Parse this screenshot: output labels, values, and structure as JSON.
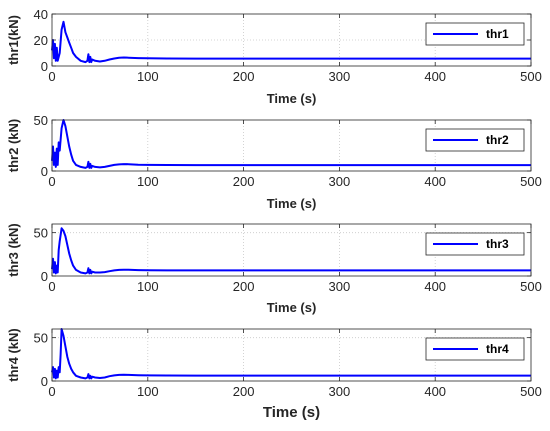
{
  "chart_data": [
    {
      "type": "line",
      "xlabel": "Time (s)",
      "ylabel": "thr1(kN)",
      "xlim": [
        0,
        500
      ],
      "ylim": [
        0,
        40
      ],
      "xticks": [
        0,
        100,
        200,
        300,
        400,
        500
      ],
      "yticks": [
        0,
        20,
        40
      ],
      "grid": true,
      "legend": "top-right",
      "color": "#0000ff",
      "series": [
        {
          "name": "thr1",
          "x": [
            0,
            1,
            2,
            3,
            4,
            5,
            6,
            8,
            10,
            12,
            14,
            16,
            18,
            20,
            22,
            25,
            30,
            35,
            37,
            38,
            39,
            40,
            41,
            42,
            45,
            50,
            55,
            60,
            65,
            70,
            75,
            80,
            90,
            100,
            120,
            150,
            200,
            300,
            400,
            500
          ],
          "y": [
            12,
            20,
            6,
            17,
            4,
            14,
            4,
            10,
            28,
            34,
            26,
            22,
            18,
            14,
            10,
            7,
            4,
            3,
            4,
            9,
            3,
            7,
            3,
            5,
            4,
            3.5,
            4,
            5,
            5.8,
            6.3,
            6.5,
            6.4,
            6.1,
            5.9,
            5.8,
            5.7,
            5.7,
            5.7,
            5.7,
            5.7
          ]
        }
      ]
    },
    {
      "type": "line",
      "xlabel": "Time (s)",
      "ylabel": "thr2 (kN)",
      "xlim": [
        0,
        500
      ],
      "ylim": [
        0,
        50
      ],
      "xticks": [
        0,
        100,
        200,
        300,
        400,
        500
      ],
      "yticks": [
        0,
        50
      ],
      "grid": true,
      "legend": "top-right",
      "color": "#0000ff",
      "series": [
        {
          "name": "thr2",
          "x": [
            0,
            1,
            2,
            3,
            4,
            5,
            6,
            7,
            8,
            10,
            12,
            14,
            16,
            18,
            20,
            22,
            25,
            30,
            35,
            37,
            38,
            39,
            40,
            41,
            42,
            45,
            50,
            55,
            60,
            65,
            70,
            75,
            80,
            90,
            100,
            120,
            150,
            200,
            300,
            400,
            500
          ],
          "y": [
            10,
            24,
            6,
            18,
            4,
            22,
            6,
            28,
            20,
            42,
            50,
            44,
            34,
            24,
            16,
            10,
            6,
            4,
            3,
            4,
            9,
            3,
            7,
            3,
            5,
            4,
            3.5,
            4,
            5,
            6,
            6.5,
            6.8,
            6.7,
            6.2,
            6,
            5.9,
            5.8,
            5.8,
            5.8,
            5.8,
            5.8
          ]
        }
      ]
    },
    {
      "type": "line",
      "xlabel": "Time (s)",
      "ylabel": "thr3 (kN)",
      "xlim": [
        0,
        500
      ],
      "ylim": [
        0,
        60
      ],
      "xticks": [
        0,
        100,
        200,
        300,
        400,
        500
      ],
      "yticks": [
        0,
        50
      ],
      "grid": true,
      "legend": "top-right",
      "color": "#0000ff",
      "series": [
        {
          "name": "thr3",
          "x": [
            0,
            1,
            2,
            3,
            4,
            5,
            6,
            7,
            8,
            10,
            12,
            14,
            16,
            18,
            20,
            22,
            25,
            30,
            35,
            37,
            38,
            39,
            40,
            41,
            42,
            45,
            50,
            55,
            60,
            65,
            70,
            75,
            80,
            90,
            100,
            120,
            150,
            200,
            300,
            400,
            500
          ],
          "y": [
            8,
            20,
            4,
            16,
            3,
            12,
            4,
            30,
            40,
            55,
            52,
            46,
            36,
            26,
            18,
            12,
            7,
            4,
            3,
            4,
            9,
            3,
            7,
            3,
            5,
            4,
            4,
            4.5,
            5.5,
            6.5,
            7,
            7.2,
            7.1,
            6.8,
            6.6,
            6.5,
            6.5,
            6.5,
            6.5,
            6.5,
            6.5
          ]
        }
      ]
    },
    {
      "type": "line",
      "xlabel": "Time (s)",
      "ylabel": "thr4 (kN)",
      "xlim": [
        0,
        500
      ],
      "ylim": [
        0,
        60
      ],
      "xticks": [
        0,
        100,
        200,
        300,
        400,
        500
      ],
      "yticks": [
        0,
        50
      ],
      "grid": true,
      "legend": "top-right",
      "color": "#0000ff",
      "series": [
        {
          "name": "thr4",
          "x": [
            0,
            1,
            2,
            3,
            4,
            5,
            6,
            7,
            8,
            9,
            10,
            12,
            14,
            16,
            18,
            20,
            22,
            25,
            30,
            35,
            37,
            38,
            39,
            40,
            41,
            42,
            45,
            50,
            55,
            60,
            65,
            70,
            75,
            80,
            90,
            100,
            120,
            150,
            200,
            300,
            400,
            500
          ],
          "y": [
            10,
            16,
            4,
            14,
            3,
            12,
            4,
            16,
            10,
            30,
            60,
            52,
            40,
            28,
            20,
            14,
            10,
            6,
            4,
            3,
            4,
            8,
            3,
            6,
            3,
            5,
            4,
            3.5,
            4,
            5.5,
            6.5,
            7,
            7.2,
            7,
            6.7,
            6.5,
            6.3,
            6.2,
            6.2,
            6.2,
            6.2,
            6.2
          ]
        }
      ]
    }
  ]
}
